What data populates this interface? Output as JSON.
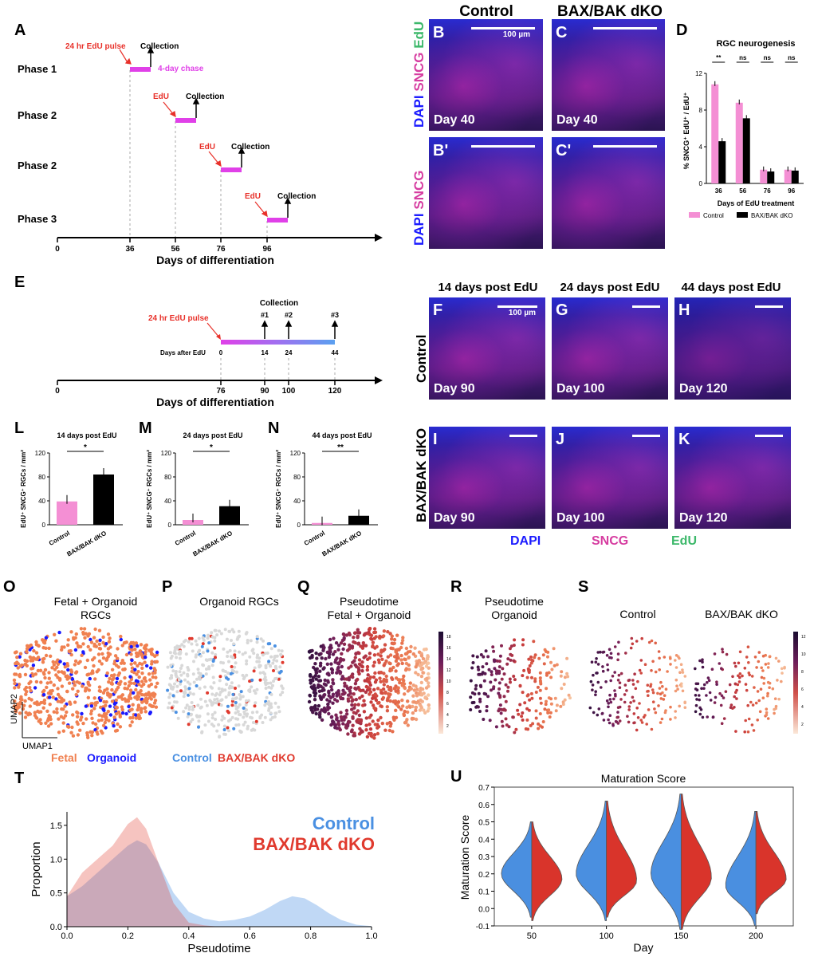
{
  "panels": {
    "A": "A",
    "B": "B",
    "C": "C",
    "Bp": "B'",
    "Cp": "C'",
    "D": "D",
    "E": "E",
    "F": "F",
    "G": "G",
    "H": "H",
    "I": "I",
    "J": "J",
    "K": "K",
    "L": "L",
    "M": "M",
    "N": "N",
    "O": "O",
    "P": "P",
    "Q": "Q",
    "R": "R",
    "S": "S",
    "T": "T",
    "U": "U"
  },
  "timelineA": {
    "phases": [
      "Phase 1",
      "Phase 2",
      "Phase 2",
      "Phase 3"
    ],
    "pulse_label": "24 hr EdU pulse",
    "edu_label": "EdU",
    "collection_label": "Collection",
    "chase_label": "4-day chase",
    "ticks": [
      "0",
      "36",
      "56",
      "76",
      "96"
    ],
    "xlabel": "Days of differentiation"
  },
  "timelineE": {
    "pulse_label": "24 hr EdU pulse",
    "collection_label": "Collection",
    "collections": [
      "#1",
      "#2",
      "#3"
    ],
    "days_after_label": "Days after EdU",
    "days_after": [
      "0",
      "14",
      "24",
      "44"
    ],
    "ticks": [
      "0",
      "76",
      "90",
      "100",
      "120"
    ],
    "xlabel": "Days of differentiation"
  },
  "micro_top": {
    "col_control": "Control",
    "col_dko": "BAX/BAK dKO",
    "scale": "100 µm",
    "stain_edu": "EdU",
    "stain_sncg": "SNCG",
    "stain_dapi": "DAPI",
    "day_labels": [
      "Day 40",
      "Day 40"
    ]
  },
  "micro_bottom": {
    "col_titles": [
      "14 days post EdU",
      "24 days post EdU",
      "44 days post EdU"
    ],
    "scale": "100 µm",
    "row_control": "Control",
    "row_dko": "BAX/BAK dKO",
    "days_ctrl": [
      "Day 90",
      "Day 100",
      "Day 120"
    ],
    "days_dko": [
      "Day 90",
      "Day 100",
      "Day 120"
    ],
    "legend": [
      "DAPI",
      "SNCG",
      "EdU"
    ],
    "legend_colors": [
      "#1b1bff",
      "#d63ca0",
      "#3cb86a"
    ]
  },
  "umap": {
    "O_title": "Fetal + Organoid\nRGCs",
    "O_title1": "Fetal + Organoid",
    "O_title2": "RGCs",
    "P_title": "Organoid RGCs",
    "Q_title1": "Pseudotime",
    "Q_title2": "Fetal + Organoid",
    "R_title1": "Pseudotime",
    "R_title2": "Organoid",
    "S_title_a": "Control",
    "S_title_b": "BAX/BAK dKO",
    "umap1": "UMAP1",
    "umap2": "UMAP2",
    "legend_fetal": "Fetal",
    "legend_organoid": "Organoid",
    "legend_control": "Control",
    "legend_dko": "BAX/BAK dKO",
    "cb_ticks_Q": [
      "18",
      "16",
      "14",
      "12",
      "10",
      "8",
      "6",
      "4",
      "2"
    ],
    "cb_ticks_S": [
      "12",
      "10",
      "8",
      "6",
      "4",
      "2"
    ]
  },
  "colors": {
    "control_pink": "#f48fd4",
    "dko_black": "#000000",
    "fetal": "#f08050",
    "organoid": "#1a1aff",
    "control_blue": "#4a90e2",
    "dko_red": "#e03a2e",
    "edu_red": "#e8312a",
    "chase_magenta": "#e040e8"
  },
  "chart_data": [
    {
      "id": "D",
      "type": "bar",
      "title": "RGC neurogenesis",
      "xlabel": "Days of EdU treatment",
      "ylabel": "% SNCG⁺ EdU⁺ / EdU⁺",
      "categories": [
        "36",
        "56",
        "76",
        "96"
      ],
      "ylim": [
        0,
        12
      ],
      "yticks": [
        "0",
        "4",
        "8",
        "12"
      ],
      "series": [
        {
          "name": "Control",
          "values": [
            10.8,
            8.8,
            1.5,
            1.5
          ]
        },
        {
          "name": "BAX/BAK dKO",
          "values": [
            4.6,
            7.1,
            1.3,
            1.4
          ]
        }
      ],
      "significance": [
        "**",
        "ns",
        "ns",
        "ns"
      ]
    },
    {
      "id": "L",
      "type": "bar",
      "title": "14 days post EdU",
      "ylabel": "EdU⁺ SNCG⁺ RGCs / mm²",
      "categories": [
        "Control",
        "BAX/BAK dKO"
      ],
      "values": [
        39,
        84
      ],
      "ylim": [
        0,
        120
      ],
      "yticks": [
        "0",
        "40",
        "80",
        "120"
      ],
      "significance": "*"
    },
    {
      "id": "M",
      "type": "bar",
      "title": "24 days post EdU",
      "ylabel": "EdU⁺ SNCG⁺ RGCs / mm²",
      "categories": [
        "Control",
        "BAX/BAK dKO"
      ],
      "values": [
        8,
        31
      ],
      "ylim": [
        0,
        120
      ],
      "yticks": [
        "0",
        "40",
        "80",
        "120"
      ],
      "significance": "*"
    },
    {
      "id": "N",
      "type": "bar",
      "title": "44 days post EdU",
      "ylabel": "EdU⁺ SNCG⁺ RGCs / mm²",
      "categories": [
        "Control",
        "BAX/BAK dKO"
      ],
      "values": [
        3,
        15
      ],
      "ylim": [
        0,
        120
      ],
      "yticks": [
        "0",
        "40",
        "80",
        "120"
      ],
      "significance": "**"
    },
    {
      "id": "T",
      "type": "area",
      "xlabel": "Pseudotime",
      "ylabel": "Proportion",
      "xlim": [
        0,
        1
      ],
      "ylim": [
        0,
        1.7
      ],
      "xticks": [
        "0.0",
        "0.2",
        "0.4",
        "0.6",
        "0.8",
        "1.0"
      ],
      "yticks": [
        "0.0",
        "0.5",
        "1.0",
        "1.5"
      ],
      "x": [
        0,
        0.05,
        0.1,
        0.15,
        0.2,
        0.23,
        0.26,
        0.3,
        0.35,
        0.4,
        0.45,
        0.5,
        0.55,
        0.6,
        0.65,
        0.7,
        0.74,
        0.78,
        0.82,
        0.86,
        0.9,
        0.95,
        1.0
      ],
      "series": [
        {
          "name": "Control",
          "values": [
            0.45,
            0.6,
            0.8,
            1.0,
            1.2,
            1.28,
            1.22,
            0.95,
            0.5,
            0.22,
            0.12,
            0.08,
            0.1,
            0.15,
            0.25,
            0.38,
            0.45,
            0.42,
            0.32,
            0.2,
            0.1,
            0.03,
            0.01
          ]
        },
        {
          "name": "BAX/BAK dKO",
          "values": [
            0.45,
            0.8,
            1.0,
            1.2,
            1.52,
            1.62,
            1.45,
            0.95,
            0.35,
            0.06,
            0.02,
            0.0,
            0.0,
            0.0,
            0.0,
            0.0,
            0.0,
            0.0,
            0.0,
            0.0,
            0.0,
            0.0,
            0.0
          ]
        }
      ],
      "legend": [
        "Control",
        "BAX/BAK dKO"
      ]
    },
    {
      "id": "U",
      "type": "violin",
      "title": "Maturation Score",
      "xlabel": "Day",
      "ylabel": "Maturation Score",
      "categories": [
        "50",
        "100",
        "150",
        "200"
      ],
      "ylim": [
        -0.1,
        0.7
      ],
      "yticks": [
        "-0.1",
        "0.0",
        "0.1",
        "0.2",
        "0.3",
        "0.4",
        "0.5",
        "0.6",
        "0.7"
      ],
      "series": [
        {
          "name": "Control",
          "ranges": [
            [
              -0.05,
              0.5
            ],
            [
              -0.07,
              0.62
            ],
            [
              -0.12,
              0.66
            ],
            [
              -0.1,
              0.56
            ]
          ],
          "peak": [
            0.2,
            0.2,
            0.2,
            0.13
          ]
        },
        {
          "name": "BAX/BAK dKO",
          "ranges": [
            [
              -0.07,
              0.5
            ],
            [
              -0.05,
              0.62
            ],
            [
              -0.12,
              0.66
            ],
            [
              -0.03,
              0.56
            ]
          ],
          "peak": [
            0.17,
            0.16,
            0.18,
            0.17
          ]
        }
      ]
    }
  ]
}
